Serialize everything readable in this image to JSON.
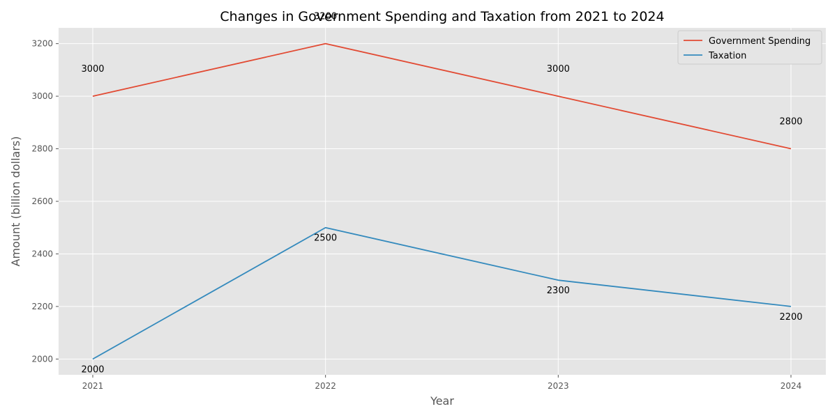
{
  "chart_data": {
    "type": "line",
    "title": "Changes in Government Spending and Taxation from 2021 to 2024",
    "xlabel": "Year",
    "ylabel": "Amount (billion dollars)",
    "categories": [
      "2021",
      "2022",
      "2023",
      "2024"
    ],
    "y_ticks": [
      2000,
      2200,
      2400,
      2600,
      2800,
      3000,
      3200
    ],
    "ylim": [
      1940,
      3260
    ],
    "grid": true,
    "legend_position": "top-right",
    "series": [
      {
        "name": "Government Spending",
        "color": "#E24A33",
        "values": [
          3000,
          3200,
          3000,
          2800
        ],
        "labels": [
          "3000",
          "3200",
          "3000",
          "2800"
        ]
      },
      {
        "name": "Taxation",
        "color": "#348ABD",
        "values": [
          2000,
          2500,
          2300,
          2200
        ],
        "labels": [
          "2000",
          "2500",
          "2300",
          "2200"
        ]
      }
    ]
  }
}
